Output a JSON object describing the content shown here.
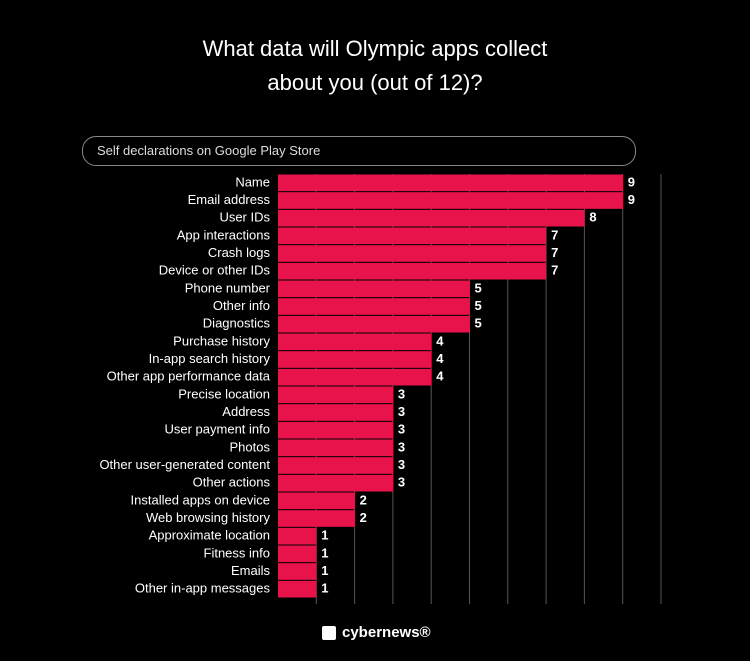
{
  "chart_data": {
    "type": "bar",
    "orientation": "horizontal",
    "title": "What data will Olympic apps collect about you (out of 12)?",
    "subtitle": "Self declarations on Google Play Store",
    "categories": [
      "Name",
      "Email address",
      "User IDs",
      "App interactions",
      "Crash logs",
      "Device or other IDs",
      "Phone number",
      "Other info",
      "Diagnostics",
      "Purchase history",
      "In-app search history",
      "Other app performance data",
      "Precise location",
      "Address",
      "User payment info",
      "Photos",
      "Other user-generated content",
      "Other actions",
      "Installed apps on device",
      "Web browsing history",
      "Approximate location",
      "Fitness info",
      "Emails",
      "Other in-app messages"
    ],
    "values": [
      9,
      9,
      8,
      7,
      7,
      7,
      5,
      5,
      5,
      4,
      4,
      4,
      3,
      3,
      3,
      3,
      3,
      3,
      2,
      2,
      1,
      1,
      1,
      1
    ],
    "color": "#e8134b",
    "xlim": [
      0,
      10
    ],
    "xticks": [
      1,
      2,
      3,
      4,
      5,
      6,
      7,
      8,
      9,
      10
    ],
    "grid": true,
    "brand": "cybernews®"
  }
}
